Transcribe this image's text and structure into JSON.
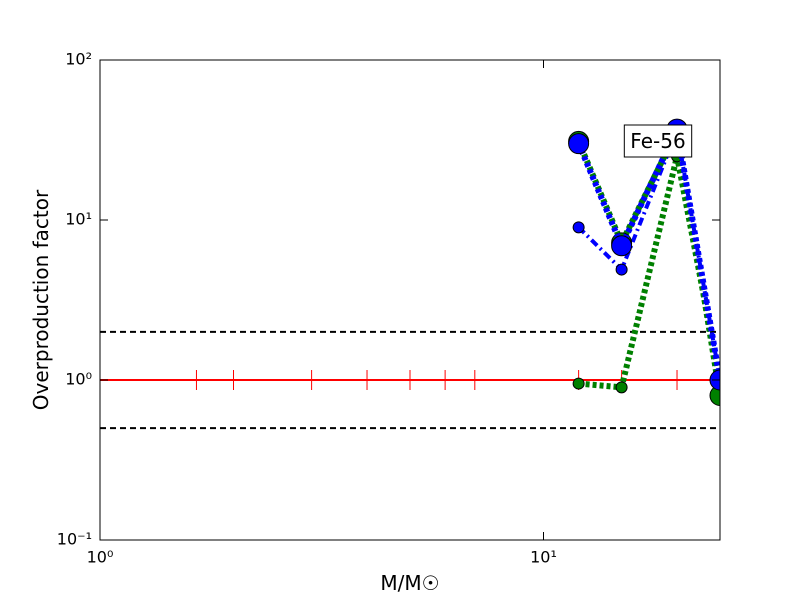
{
  "chart_data": {
    "type": "line",
    "x_label": "M/M☉",
    "y_label": "Overproduction factor",
    "annotation": "Fe-56",
    "xscale": "log",
    "yscale": "log",
    "xlim": [
      1,
      25
    ],
    "ylim": [
      0.1,
      100
    ],
    "xticks": [
      {
        "value": 1,
        "label": "10⁰"
      },
      {
        "value": 10,
        "label": "10¹"
      }
    ],
    "yticks": [
      {
        "value": 0.1,
        "label": "10⁻¹"
      },
      {
        "value": 1,
        "label": "10⁰"
      },
      {
        "value": 10,
        "label": "10¹"
      },
      {
        "value": 100,
        "label": "10²"
      }
    ],
    "hlines": [
      0.5,
      1,
      2
    ],
    "hline_color": "#000000",
    "series": [
      {
        "color": "#ff0000",
        "linestyle": "solid",
        "marker": "vbar",
        "x": [
          1,
          1.65,
          2,
          3,
          4,
          5,
          6,
          7,
          12,
          15,
          20,
          25
        ],
        "values": [
          1,
          1,
          1,
          1,
          1,
          1,
          1,
          1,
          1,
          1,
          1,
          1
        ]
      },
      {
        "color": "#008000",
        "linestyle": "dotted",
        "marker": "small",
        "x": [
          12,
          15,
          20,
          25
        ],
        "values": [
          0.95,
          0.9,
          25,
          1.0
        ]
      },
      {
        "color": "#0000ff",
        "linestyle": "dashdot",
        "marker": "small",
        "x": [
          12,
          15,
          20,
          25
        ],
        "values": [
          9.0,
          4.9,
          36,
          1.0
        ]
      },
      {
        "color": "#008000",
        "linestyle": "dotted",
        "marker": "large",
        "x": [
          12,
          15,
          20,
          25
        ],
        "values": [
          31,
          7.2,
          36,
          0.8
        ]
      },
      {
        "color": "#0000ff",
        "linestyle": "dotted",
        "marker": "large",
        "x": [
          12,
          15,
          20,
          25
        ],
        "values": [
          30,
          6.9,
          37,
          1.0
        ]
      }
    ]
  }
}
